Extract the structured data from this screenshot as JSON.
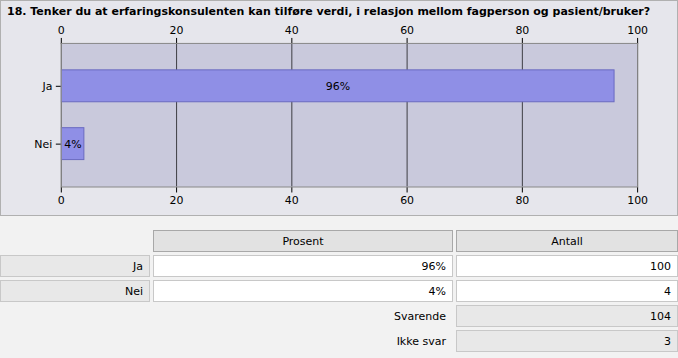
{
  "chart_data": {
    "type": "bar",
    "title": "18. Tenker du at erfaringskonsulenten kan tilføre verdi, i relasjon mellom fagperson og pasient/bruker?",
    "orientation": "horizontal",
    "categories": [
      "Ja",
      "Nei"
    ],
    "values": [
      96,
      4
    ],
    "value_labels": [
      "96%",
      "4%"
    ],
    "data_labels": true,
    "color": "#8f8fe6",
    "xlim": [
      0,
      100
    ],
    "xticks": [
      0,
      20,
      40,
      60,
      80,
      100
    ],
    "grid": true
  },
  "table": {
    "header": [
      "Prosent",
      "Antall"
    ],
    "rows": [
      [
        "Ja",
        "96%",
        "100"
      ],
      [
        "Nei",
        "4%",
        "4"
      ]
    ],
    "summary": [
      [
        "Svarende",
        "104"
      ],
      [
        "Ikke svar",
        "3"
      ]
    ]
  }
}
